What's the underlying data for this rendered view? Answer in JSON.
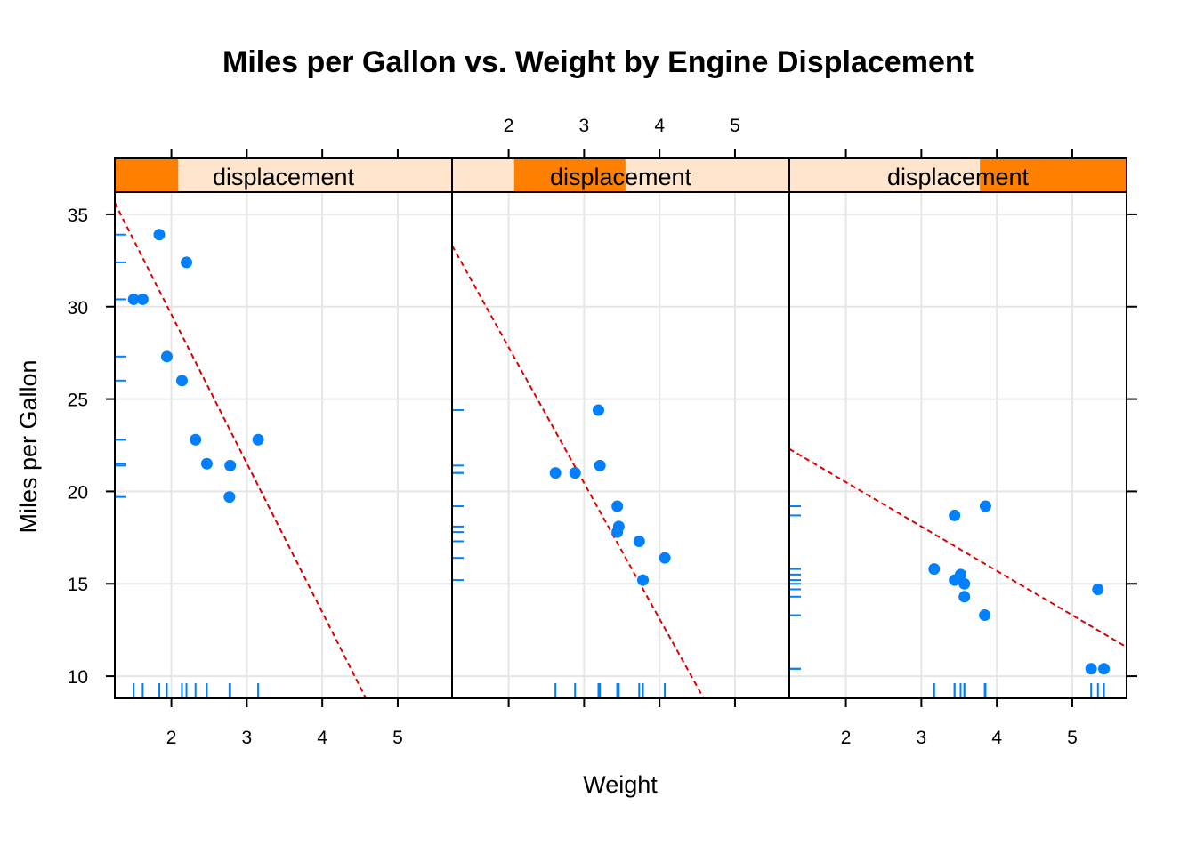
{
  "chart_data": {
    "type": "scatter",
    "title": "Miles per Gallon vs. Weight by Engine Displacement",
    "xlabel": "Weight",
    "ylabel": "Miles per Gallon",
    "xlim": [
      1.25,
      5.72
    ],
    "ylim": [
      8.8,
      36.2
    ],
    "x_ticks": [
      2,
      3,
      4,
      5
    ],
    "y_ticks": [
      10,
      15,
      20,
      25,
      30,
      35
    ],
    "grid": true,
    "strip_label": "displacement",
    "colors": {
      "points": "#0080ff",
      "fit": "#e00000",
      "strip_bg": "#ffe5cc",
      "strip_fill": "#ff7f00",
      "grid": "#e6e6e6"
    },
    "panels": [
      {
        "strip_label": "displacement",
        "strip_range": [
          0,
          0.188
        ],
        "points": [
          {
            "x": 1.84,
            "y": 33.9
          },
          {
            "x": 2.2,
            "y": 32.4
          },
          {
            "x": 1.5,
            "y": 30.4
          },
          {
            "x": 1.62,
            "y": 30.4
          },
          {
            "x": 1.94,
            "y": 27.3
          },
          {
            "x": 2.14,
            "y": 26.0
          },
          {
            "x": 2.32,
            "y": 22.8
          },
          {
            "x": 3.15,
            "y": 22.8
          },
          {
            "x": 2.47,
            "y": 21.5
          },
          {
            "x": 2.78,
            "y": 21.4
          },
          {
            "x": 2.77,
            "y": 19.7
          }
        ],
        "fit": {
          "intercept": 45.7,
          "slope": -8.06
        }
      },
      {
        "strip_label": "displacement",
        "strip_range": [
          0.184,
          0.514
        ],
        "points": [
          {
            "x": 3.19,
            "y": 24.4
          },
          {
            "x": 3.21,
            "y": 21.4
          },
          {
            "x": 2.62,
            "y": 21.0
          },
          {
            "x": 2.88,
            "y": 21.0
          },
          {
            "x": 3.44,
            "y": 19.2
          },
          {
            "x": 3.46,
            "y": 18.1
          },
          {
            "x": 3.44,
            "y": 17.8
          },
          {
            "x": 3.73,
            "y": 17.3
          },
          {
            "x": 4.07,
            "y": 16.4
          },
          {
            "x": 3.78,
            "y": 15.2
          }
        ],
        "fit": {
          "intercept": 42.5,
          "slope": -7.35
        }
      },
      {
        "strip_label": "displacement",
        "strip_range": [
          0.565,
          1.0
        ],
        "points": [
          {
            "x": 3.85,
            "y": 19.2
          },
          {
            "x": 3.44,
            "y": 18.7
          },
          {
            "x": 3.17,
            "y": 15.8
          },
          {
            "x": 3.52,
            "y": 15.5
          },
          {
            "x": 3.44,
            "y": 15.2
          },
          {
            "x": 3.57,
            "y": 15.0
          },
          {
            "x": 3.57,
            "y": 14.3
          },
          {
            "x": 5.34,
            "y": 14.7
          },
          {
            "x": 3.84,
            "y": 13.3
          },
          {
            "x": 5.25,
            "y": 10.4
          },
          {
            "x": 5.42,
            "y": 10.4
          }
        ],
        "fit": {
          "intercept": 25.3,
          "slope": -2.4
        }
      }
    ]
  }
}
